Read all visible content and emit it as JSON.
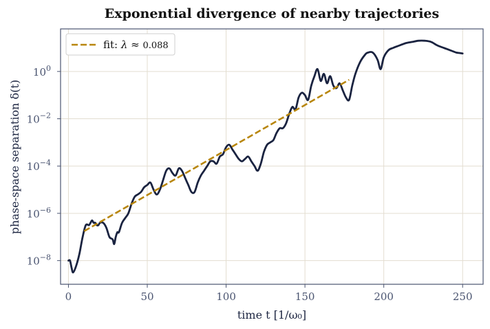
{
  "chart_data": {
    "type": "line",
    "title": "Exponential divergence of nearby trajectories",
    "xlabel": "time  t  [1/ω₀]",
    "ylabel": "phase-space separation  δ(t)",
    "y_scale": "log",
    "xlim": [
      -5,
      263
    ],
    "ylim_log10": [
      -9.0,
      1.8
    ],
    "x_ticks": [
      0,
      50,
      100,
      150,
      200,
      250
    ],
    "x_tick_labels": [
      "0",
      "50",
      "100",
      "150",
      "200",
      "250"
    ],
    "y_ticks_log10": [
      -8,
      -6,
      -4,
      -2,
      0
    ],
    "y_tick_labels": [
      {
        "base": "10",
        "exp": "−8"
      },
      {
        "base": "10",
        "exp": "−6"
      },
      {
        "base": "10",
        "exp": "−4"
      },
      {
        "base": "10",
        "exp": "−2"
      },
      {
        "base": "10",
        "exp": "0"
      }
    ],
    "grid": true,
    "legend_position": "top-left",
    "series": [
      {
        "color": "#1a2340",
        "style": "solid",
        "x": [
          0,
          1,
          2,
          3,
          5,
          7,
          9,
          11,
          13,
          14,
          15,
          16,
          17,
          18,
          19,
          20,
          22,
          24,
          26,
          28,
          29,
          30,
          31,
          32,
          34,
          36,
          38,
          40,
          42,
          44,
          46,
          48,
          50,
          52,
          54,
          56,
          58,
          60,
          62,
          64,
          66,
          68,
          70,
          72,
          74,
          76,
          78,
          80,
          82,
          84,
          86,
          88,
          90,
          92,
          94,
          96,
          98,
          100,
          102,
          104,
          106,
          108,
          110,
          112,
          114,
          116,
          118,
          120,
          122,
          124,
          126,
          128,
          130,
          132,
          134,
          136,
          138,
          140,
          142,
          144,
          146,
          148,
          150,
          152,
          154,
          156,
          158,
          160,
          162,
          164,
          166,
          168,
          170,
          172,
          174,
          176,
          178,
          180,
          182,
          185,
          188,
          190,
          193,
          196,
          198,
          200,
          203,
          206,
          210,
          214,
          218,
          222,
          226,
          230,
          234,
          238,
          242,
          246,
          248,
          250
        ],
        "y_log10": [
          -8.0,
          -8.0,
          -8.3,
          -8.5,
          -8.2,
          -7.7,
          -7.0,
          -6.5,
          -6.5,
          -6.4,
          -6.3,
          -6.4,
          -6.4,
          -6.5,
          -6.5,
          -6.4,
          -6.4,
          -6.6,
          -7.0,
          -7.1,
          -7.3,
          -7.0,
          -6.8,
          -6.8,
          -6.4,
          -6.2,
          -6.0,
          -5.6,
          -5.3,
          -5.2,
          -5.1,
          -4.9,
          -4.8,
          -4.7,
          -5.0,
          -5.2,
          -5.0,
          -4.6,
          -4.2,
          -4.1,
          -4.3,
          -4.4,
          -4.1,
          -4.2,
          -4.5,
          -4.8,
          -5.1,
          -5.1,
          -4.7,
          -4.4,
          -4.2,
          -4.0,
          -3.8,
          -3.8,
          -3.9,
          -3.6,
          -3.5,
          -3.2,
          -3.1,
          -3.3,
          -3.5,
          -3.7,
          -3.8,
          -3.7,
          -3.6,
          -3.8,
          -4.0,
          -4.2,
          -3.9,
          -3.4,
          -3.1,
          -3.0,
          -2.9,
          -2.6,
          -2.4,
          -2.4,
          -2.2,
          -1.8,
          -1.5,
          -1.6,
          -1.1,
          -0.9,
          -1.0,
          -1.2,
          -0.6,
          -0.2,
          0.1,
          -0.4,
          -0.1,
          -0.5,
          -0.2,
          -0.6,
          -0.7,
          -0.5,
          -0.8,
          -1.1,
          -1.2,
          -0.6,
          -0.1,
          0.4,
          0.7,
          0.8,
          0.8,
          0.5,
          0.1,
          0.6,
          0.9,
          1.0,
          1.1,
          1.2,
          1.25,
          1.3,
          1.3,
          1.25,
          1.1,
          1.0,
          0.9,
          0.8,
          0.78,
          0.76
        ]
      },
      {
        "name": "fit: λ ≈ 0.088",
        "legend_prefix": "fit: ",
        "legend_symbol": "λ ≈ ",
        "legend_value": "0.088",
        "color": "#b8860b",
        "style": "dashed",
        "x": [
          10,
          178
        ],
        "y_log10": [
          -6.75,
          -0.35
        ]
      }
    ]
  }
}
